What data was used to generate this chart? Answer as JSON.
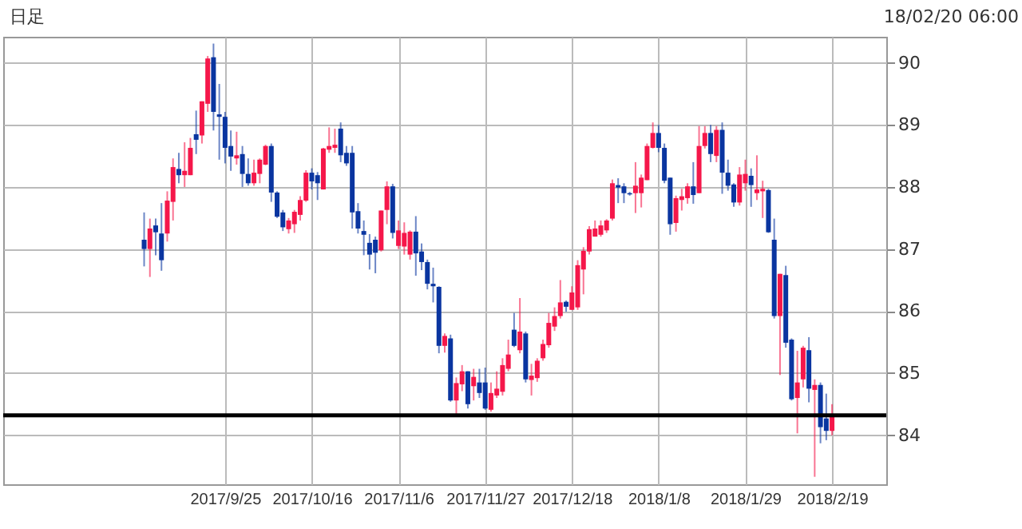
{
  "chart_data": {
    "type": "candlestick",
    "categories": [
      null,
      null,
      null,
      null,
      null,
      null,
      null,
      null,
      null,
      null,
      null,
      null,
      null,
      null,
      "2017/9/25",
      null,
      null,
      null,
      null,
      null,
      null,
      null,
      null,
      null,
      null,
      null,
      null,
      null,
      null,
      "2017/10/16",
      null,
      null,
      null,
      null,
      null,
      null,
      null,
      null,
      null,
      null,
      null,
      null,
      null,
      null,
      "2017/11/6",
      null,
      null,
      null,
      null,
      null,
      null,
      null,
      null,
      null,
      null,
      null,
      null,
      null,
      null,
      "2017/11/27",
      null,
      null,
      null,
      null,
      null,
      null,
      null,
      null,
      null,
      null,
      null,
      null,
      null,
      null,
      "2017/12/18",
      null,
      null,
      null,
      null,
      null,
      null,
      null,
      null,
      null,
      null,
      null,
      null,
      null,
      null,
      "2018/1/8",
      null,
      null,
      null,
      null,
      null,
      null,
      null,
      null,
      null,
      null,
      null,
      null,
      null,
      null,
      "2018/1/29",
      null,
      null,
      null,
      null,
      null,
      null,
      null,
      null,
      null,
      null,
      null,
      null,
      null,
      null,
      "2018/2/19"
    ],
    "ohlc": [
      [
        87.15,
        87.59,
        86.72,
        87.0
      ],
      [
        87.0,
        87.49,
        86.55,
        87.33
      ],
      [
        87.38,
        87.49,
        86.9,
        87.27
      ],
      [
        87.25,
        87.74,
        86.65,
        86.82
      ],
      [
        87.25,
        87.93,
        87.12,
        87.78
      ],
      [
        87.76,
        88.46,
        87.46,
        88.32
      ],
      [
        88.29,
        88.55,
        88.06,
        88.19
      ],
      [
        88.19,
        88.72,
        88.0,
        88.26
      ],
      [
        88.19,
        88.79,
        88.19,
        88.63
      ],
      [
        88.85,
        89.23,
        88.53,
        88.76
      ],
      [
        88.83,
        89.38,
        88.7,
        89.38
      ],
      [
        89.34,
        90.11,
        89.21,
        90.07
      ],
      [
        90.09,
        90.31,
        88.91,
        89.21
      ],
      [
        89.17,
        89.66,
        88.44,
        89.13
      ],
      [
        89.13,
        89.21,
        88.38,
        88.63
      ],
      [
        88.66,
        88.91,
        88.26,
        88.49
      ],
      [
        88.46,
        88.89,
        88.36,
        88.51
      ],
      [
        88.53,
        88.66,
        88.0,
        88.21
      ],
      [
        88.21,
        88.46,
        88.02,
        88.06
      ],
      [
        88.06,
        88.44,
        88.02,
        88.23
      ],
      [
        88.21,
        88.46,
        88.06,
        88.44
      ],
      [
        88.36,
        88.68,
        88.35,
        88.66
      ],
      [
        88.66,
        88.7,
        87.76,
        87.91
      ],
      [
        87.91,
        87.93,
        87.5,
        87.52
      ],
      [
        87.59,
        87.63,
        87.29,
        87.35
      ],
      [
        87.32,
        87.5,
        87.25,
        87.46
      ],
      [
        87.4,
        87.63,
        87.26,
        87.6
      ],
      [
        87.55,
        87.85,
        87.46,
        87.79
      ],
      [
        87.78,
        88.27,
        87.76,
        88.23
      ],
      [
        88.23,
        88.3,
        87.96,
        88.09
      ],
      [
        88.19,
        88.24,
        87.79,
        88.06
      ],
      [
        87.96,
        88.63,
        87.96,
        88.62
      ],
      [
        88.6,
        88.96,
        88.55,
        88.66
      ],
      [
        88.63,
        88.94,
        88.55,
        88.68
      ],
      [
        88.94,
        89.04,
        88.4,
        88.51
      ],
      [
        88.55,
        88.66,
        88.34,
        88.38
      ],
      [
        88.55,
        88.66,
        87.33,
        87.59
      ],
      [
        87.61,
        87.74,
        87.25,
        87.33
      ],
      [
        87.29,
        87.46,
        86.9,
        87.23
      ],
      [
        87.1,
        87.24,
        86.67,
        86.91
      ],
      [
        87.15,
        87.2,
        86.61,
        86.94
      ],
      [
        86.98,
        87.62,
        86.96,
        87.62
      ],
      [
        87.63,
        88.09,
        87.4,
        88.01
      ],
      [
        88.01,
        88.05,
        87.17,
        87.26
      ],
      [
        87.05,
        87.46,
        87.0,
        87.3
      ],
      [
        87.04,
        87.43,
        86.91,
        87.26
      ],
      [
        86.91,
        87.3,
        86.83,
        87.28
      ],
      [
        87.28,
        87.53,
        86.57,
        86.93
      ],
      [
        86.96,
        87.09,
        86.66,
        86.79
      ],
      [
        86.79,
        86.83,
        86.35,
        86.44
      ],
      [
        86.44,
        86.7,
        86.14,
        86.4
      ],
      [
        86.39,
        86.4,
        85.32,
        85.44
      ],
      [
        85.44,
        85.64,
        85.33,
        85.6
      ],
      [
        85.56,
        85.62,
        84.54,
        84.56
      ],
      [
        84.56,
        84.93,
        84.31,
        84.84
      ],
      [
        84.82,
        85.13,
        84.71,
        85.03
      ],
      [
        85.03,
        85.03,
        84.43,
        84.5
      ],
      [
        84.79,
        85.07,
        84.56,
        84.94
      ],
      [
        84.85,
        85.07,
        84.6,
        84.68
      ],
      [
        84.85,
        85.09,
        84.41,
        84.43
      ],
      [
        84.41,
        84.85,
        84.38,
        84.68
      ],
      [
        84.64,
        85.03,
        84.6,
        84.75
      ],
      [
        84.7,
        85.24,
        84.64,
        85.13
      ],
      [
        85.07,
        85.54,
        85.03,
        85.3
      ],
      [
        85.7,
        85.97,
        85.42,
        85.44
      ],
      [
        85.37,
        86.21,
        85.32,
        85.67
      ],
      [
        85.64,
        85.67,
        84.85,
        84.9
      ],
      [
        84.89,
        85.15,
        84.64,
        84.96
      ],
      [
        84.92,
        85.24,
        84.86,
        85.2
      ],
      [
        85.24,
        85.54,
        85.2,
        85.47
      ],
      [
        85.45,
        85.97,
        85.41,
        85.81
      ],
      [
        85.75,
        86.06,
        85.68,
        85.92
      ],
      [
        85.92,
        86.5,
        85.88,
        86.14
      ],
      [
        86.15,
        86.17,
        85.99,
        86.07
      ],
      [
        86.02,
        86.4,
        86.02,
        86.3
      ],
      [
        86.06,
        86.82,
        86.02,
        86.74
      ],
      [
        86.67,
        87.03,
        86.27,
        86.97
      ],
      [
        86.96,
        87.37,
        86.91,
        87.32
      ],
      [
        87.2,
        87.46,
        87.2,
        87.33
      ],
      [
        87.23,
        87.46,
        87.2,
        87.38
      ],
      [
        87.3,
        87.48,
        87.26,
        87.46
      ],
      [
        87.49,
        88.12,
        87.46,
        88.06
      ],
      [
        88.03,
        88.14,
        87.74,
        87.99
      ],
      [
        88.01,
        88.06,
        87.74,
        87.9
      ],
      [
        87.9,
        87.92,
        87.86,
        87.88
      ],
      [
        87.9,
        88.4,
        87.58,
        88.02
      ],
      [
        87.9,
        88.2,
        87.67,
        88.15
      ],
      [
        88.11,
        88.7,
        88.11,
        88.66
      ],
      [
        88.63,
        89.04,
        88.62,
        88.87
      ],
      [
        88.87,
        89.0,
        88.56,
        88.63
      ],
      [
        88.63,
        88.7,
        88.06,
        88.1
      ],
      [
        88.15,
        88.15,
        87.23,
        87.4
      ],
      [
        87.42,
        87.86,
        87.28,
        87.82
      ],
      [
        87.79,
        87.97,
        87.62,
        87.85
      ],
      [
        87.82,
        88.06,
        87.73,
        88.01
      ],
      [
        88.01,
        88.4,
        87.73,
        87.87
      ],
      [
        87.9,
        88.98,
        87.9,
        88.66
      ],
      [
        88.66,
        88.98,
        88.62,
        88.87
      ],
      [
        88.87,
        89.0,
        88.4,
        88.53
      ],
      [
        88.5,
        88.98,
        88.4,
        88.92
      ],
      [
        88.92,
        89.04,
        87.89,
        88.23
      ],
      [
        88.23,
        88.44,
        87.94,
        88.02
      ],
      [
        88.04,
        88.06,
        87.68,
        87.75
      ],
      [
        87.75,
        88.32,
        87.7,
        88.2
      ],
      [
        88.06,
        88.44,
        87.94,
        88.21
      ],
      [
        88.18,
        88.3,
        87.68,
        88.03
      ],
      [
        87.9,
        88.51,
        87.79,
        87.96
      ],
      [
        87.93,
        88.1,
        87.5,
        87.97
      ],
      [
        87.95,
        87.97,
        87.26,
        87.27
      ],
      [
        87.15,
        87.49,
        85.88,
        85.92
      ],
      [
        85.92,
        86.6,
        84.97,
        86.6
      ],
      [
        86.58,
        86.73,
        85.41,
        85.49
      ],
      [
        85.54,
        85.56,
        84.56,
        84.58
      ],
      [
        84.6,
        85.36,
        84.03,
        84.85
      ],
      [
        84.9,
        85.44,
        84.77,
        85.41
      ],
      [
        85.37,
        85.58,
        84.53,
        84.75
      ],
      [
        84.73,
        84.9,
        83.33,
        84.81
      ],
      [
        84.81,
        84.85,
        83.87,
        84.13
      ],
      [
        84.27,
        84.67,
        83.92,
        84.07
      ],
      [
        84.07,
        84.5,
        84.0,
        84.32
      ]
    ],
    "colors": [
      "#0a35a0",
      "#f5174a",
      "#0a35a0",
      "#0a35a0",
      "#f5174a",
      "#f5174a",
      "#0a35a0",
      "#f5174a",
      "#f5174a",
      "#0a35a0",
      "#f5174a",
      "#f5174a",
      "#0a35a0",
      "#0a35a0",
      "#0a35a0",
      "#0a35a0",
      "#f5174a",
      "#0a35a0",
      "#0a35a0",
      "#f5174a",
      "#f5174a",
      "#f5174a",
      "#0a35a0",
      "#0a35a0",
      "#0a35a0",
      "#f5174a",
      "#f5174a",
      "#f5174a",
      "#f5174a",
      "#0a35a0",
      "#0a35a0",
      "#f5174a",
      "#f5174a",
      "#f5174a",
      "#0a35a0",
      "#0a35a0",
      "#0a35a0",
      "#0a35a0",
      "#0a35a0",
      "#0a35a0",
      "#0a35a0",
      "#f5174a",
      "#f5174a",
      "#0a35a0",
      "#f5174a",
      "#f5174a",
      "#f5174a",
      "#0a35a0",
      "#0a35a0",
      "#0a35a0",
      "#0a35a0",
      "#0a35a0",
      "#f5174a",
      "#0a35a0",
      "#f5174a",
      "#f5174a",
      "#0a35a0",
      "#f5174a",
      "#0a35a0",
      "#0a35a0",
      "#f5174a",
      "#f5174a",
      "#f5174a",
      "#f5174a",
      "#0a35a0",
      "#f5174a",
      "#0a35a0",
      "#f5174a",
      "#f5174a",
      "#f5174a",
      "#f5174a",
      "#f5174a",
      "#f5174a",
      "#0a35a0",
      "#f5174a",
      "#f5174a",
      "#f5174a",
      "#f5174a",
      "#f5174a",
      "#f5174a",
      "#f5174a",
      "#f5174a",
      "#0a35a0",
      "#0a35a0",
      "#0a35a0",
      "#f5174a",
      "#f5174a",
      "#f5174a",
      "#f5174a",
      "#0a35a0",
      "#0a35a0",
      "#0a35a0",
      "#f5174a",
      "#f5174a",
      "#f5174a",
      "#0a35a0",
      "#f5174a",
      "#f5174a",
      "#0a35a0",
      "#f5174a",
      "#0a35a0",
      "#0a35a0",
      "#0a35a0",
      "#f5174a",
      "#f5174a",
      "#0a35a0",
      "#f5174a",
      "#f5174a",
      "#0a35a0",
      "#0a35a0",
      "#f5174a",
      "#0a35a0",
      "#0a35a0",
      "#f5174a",
      "#f5174a",
      "#0a35a0",
      "#f5174a",
      "#0a35a0",
      "#0a35a0",
      "#f5174a"
    ],
    "ylim": [
      83.21,
      90.42
    ],
    "yticks": [
      84,
      85,
      86,
      87,
      88,
      89,
      90
    ],
    "grid": true,
    "ref_lines": [
      {
        "axis": "y",
        "value": 84.32,
        "color": "#000000"
      }
    ],
    "annotations": [
      "日足",
      "18/02/20 06:00"
    ]
  }
}
